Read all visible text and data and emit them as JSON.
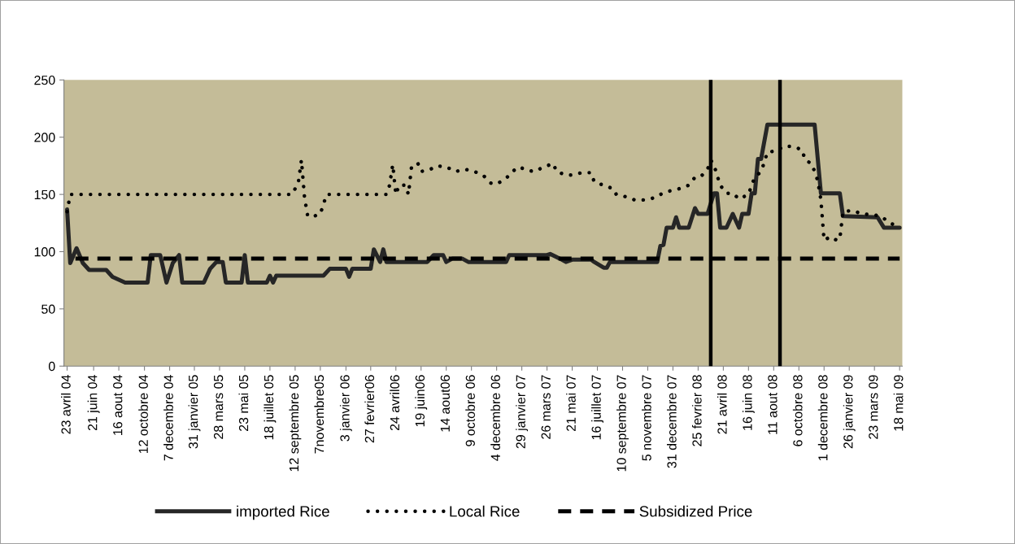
{
  "chart_data": {
    "type": "line",
    "xlim": [
      "2004-04-16",
      "2009-05-24"
    ],
    "ylim": [
      0,
      250
    ],
    "yticks": [
      0,
      50,
      100,
      150,
      200,
      250
    ],
    "xticks": [
      {
        "value": "2004-04-23",
        "label": "23 avril 04"
      },
      {
        "value": "2004-06-21",
        "label": "21 juin 04"
      },
      {
        "value": "2004-08-16",
        "label": "16 aout 04"
      },
      {
        "value": "2004-10-12",
        "label": "12 octobre 04"
      },
      {
        "value": "2004-12-07",
        "label": "7 decembre 04"
      },
      {
        "value": "2005-01-31",
        "label": "31 janvier 05"
      },
      {
        "value": "2005-03-28",
        "label": "28 mars 05"
      },
      {
        "value": "2005-05-23",
        "label": "23 mai 05"
      },
      {
        "value": "2005-07-18",
        "label": "18 juillet 05"
      },
      {
        "value": "2005-09-12",
        "label": "12 septembre 05"
      },
      {
        "value": "2005-11-07",
        "label": "7novembre05"
      },
      {
        "value": "2006-01-03",
        "label": "3 janvier 06"
      },
      {
        "value": "2006-02-27",
        "label": "27 fevrier06"
      },
      {
        "value": "2006-04-24",
        "label": "24 avril06"
      },
      {
        "value": "2006-06-19",
        "label": "19 juin06"
      },
      {
        "value": "2006-08-14",
        "label": "14 aout06"
      },
      {
        "value": "2006-10-09",
        "label": "9 octobre 06"
      },
      {
        "value": "2006-12-04",
        "label": "4 decembre 06"
      },
      {
        "value": "2007-01-29",
        "label": "29 janvier 07"
      },
      {
        "value": "2007-03-26",
        "label": "26 mars 07"
      },
      {
        "value": "2007-05-21",
        "label": "21 mai 07"
      },
      {
        "value": "2007-07-16",
        "label": "16 juillet 07"
      },
      {
        "value": "2007-09-10",
        "label": "10 septembre 07"
      },
      {
        "value": "2007-11-05",
        "label": "5 novembre 07"
      },
      {
        "value": "2007-12-31",
        "label": "31 decembre 07"
      },
      {
        "value": "2008-02-25",
        "label": "25 fevrier 08"
      },
      {
        "value": "2008-04-21",
        "label": "21 avril 08"
      },
      {
        "value": "2008-06-16",
        "label": "16 juin 08"
      },
      {
        "value": "2008-08-11",
        "label": "11 aout 08"
      },
      {
        "value": "2008-10-06",
        "label": "6 octobre 08"
      },
      {
        "value": "2008-12-01",
        "label": "1 decembre 08"
      },
      {
        "value": "2009-01-26",
        "label": "26 janvier 09"
      },
      {
        "value": "2009-03-23",
        "label": "23 mars 09"
      },
      {
        "value": "2009-05-18",
        "label": "18 mai 09"
      }
    ],
    "grid": false,
    "legend": "bottom",
    "marker": "none",
    "series": [
      {
        "name": "imported Rice",
        "color": "#262626",
        "line_style": "solid",
        "x": [
          "2004-04-23",
          "2004-04-30",
          "2004-05-14",
          "2004-05-28",
          "2004-06-11",
          "2004-07-19",
          "2004-08-02",
          "2004-08-30",
          "2004-10-19",
          "2004-10-26",
          "2004-11-16",
          "2004-11-30",
          "2004-12-14",
          "2004-12-28",
          "2005-01-04",
          "2005-02-21",
          "2005-03-07",
          "2005-03-21",
          "2005-04-04",
          "2005-04-11",
          "2005-05-16",
          "2005-05-23",
          "2005-05-30",
          "2005-07-11",
          "2005-07-18",
          "2005-07-25",
          "2005-08-01",
          "2005-11-14",
          "2005-11-28",
          "2006-01-03",
          "2006-01-10",
          "2006-01-17",
          "2006-02-27",
          "2006-03-06",
          "2006-03-20",
          "2006-03-27",
          "2006-04-03",
          "2006-07-03",
          "2006-07-17",
          "2006-08-07",
          "2006-08-14",
          "2006-08-28",
          "2006-09-18",
          "2006-10-02",
          "2006-12-25",
          "2007-01-01",
          "2007-03-26",
          "2007-04-02",
          "2007-04-23",
          "2007-05-07",
          "2007-05-21",
          "2007-07-02",
          "2007-07-09",
          "2007-07-30",
          "2007-08-06",
          "2007-08-13",
          "2007-11-26",
          "2007-12-03",
          "2007-12-10",
          "2007-12-17",
          "2007-12-31",
          "2008-01-07",
          "2008-01-14",
          "2008-02-04",
          "2008-02-18",
          "2008-02-25",
          "2008-03-17",
          "2008-03-31",
          "2008-04-07",
          "2008-04-14",
          "2008-04-28",
          "2008-05-12",
          "2008-05-26",
          "2008-06-02",
          "2008-06-16",
          "2008-06-23",
          "2008-06-30",
          "2008-07-07",
          "2008-07-14",
          "2008-07-28",
          "2008-11-10",
          "2008-11-24",
          "2009-01-05",
          "2009-01-12",
          "2009-03-30",
          "2009-04-13",
          "2009-05-18"
        ],
        "values": [
          137,
          90,
          103,
          90,
          84,
          84,
          78,
          73,
          73,
          97,
          97,
          73,
          90,
          97,
          73,
          73,
          85,
          91,
          91,
          73,
          73,
          97,
          73,
          73,
          79,
          73,
          79,
          79,
          85,
          85,
          78,
          85,
          85,
          102,
          91,
          102,
          91,
          91,
          97,
          97,
          91,
          94,
          94,
          91,
          91,
          97,
          97,
          98,
          94,
          91,
          93,
          93,
          91,
          86,
          86,
          91,
          91,
          105,
          106,
          121,
          121,
          130,
          121,
          121,
          138,
          133,
          133,
          151,
          151,
          121,
          121,
          133,
          121,
          133,
          133,
          151,
          151,
          181,
          181,
          211,
          211,
          151,
          151,
          131,
          130,
          121,
          121
        ]
      },
      {
        "name": "Local Rice",
        "color": "#000000",
        "line_style": "dotted",
        "x": [
          "2004-04-23",
          "2004-04-30",
          "2005-09-05",
          "2005-09-19",
          "2005-09-26",
          "2005-10-03",
          "2005-10-10",
          "2005-10-24",
          "2005-11-07",
          "2005-11-21",
          "2006-04-03",
          "2006-04-10",
          "2006-04-17",
          "2006-04-24",
          "2006-05-01",
          "2006-05-15",
          "2006-05-22",
          "2006-05-29",
          "2006-06-12",
          "2006-06-19",
          "2006-07-10",
          "2006-07-24",
          "2006-08-14",
          "2006-09-04",
          "2006-09-25",
          "2006-10-16",
          "2006-11-06",
          "2006-11-20",
          "2006-12-04",
          "2006-12-25",
          "2007-01-08",
          "2007-01-22",
          "2007-02-12",
          "2007-02-26",
          "2007-03-19",
          "2007-04-09",
          "2007-04-16",
          "2007-05-07",
          "2007-05-21",
          "2007-06-11",
          "2007-07-02",
          "2007-07-09",
          "2007-07-30",
          "2007-08-20",
          "2007-08-27",
          "2007-09-17",
          "2007-10-08",
          "2007-10-22",
          "2007-11-12",
          "2007-12-03",
          "2007-12-24",
          "2008-01-14",
          "2008-02-04",
          "2008-02-18",
          "2008-03-03",
          "2008-03-17",
          "2008-03-24",
          "2008-03-31",
          "2008-04-07",
          "2008-04-14",
          "2008-04-28",
          "2008-05-12",
          "2008-05-26",
          "2008-06-16",
          "2008-06-23",
          "2008-06-30",
          "2008-07-14",
          "2008-07-21",
          "2008-07-28",
          "2008-08-18",
          "2008-09-01",
          "2008-09-22",
          "2008-10-13",
          "2008-10-20",
          "2008-11-03",
          "2008-11-10",
          "2008-11-17",
          "2008-11-24",
          "2008-12-01",
          "2008-12-15",
          "2008-12-29",
          "2009-01-05",
          "2009-01-12",
          "2009-02-02",
          "2009-02-23",
          "2009-03-23",
          "2009-04-06",
          "2009-04-27",
          "2009-05-18"
        ],
        "values": [
          135,
          150,
          150,
          160,
          180,
          147,
          131,
          131,
          133,
          150,
          150,
          158,
          176,
          150,
          158,
          158,
          150,
          175,
          177,
          170,
          172,
          175,
          174,
          170,
          172,
          170,
          166,
          160,
          159,
          164,
          170,
          174,
          171,
          170,
          174,
          177,
          170,
          167,
          167,
          169,
          169,
          161,
          158,
          155,
          150,
          148,
          145,
          145,
          146,
          150,
          153,
          155,
          158,
          165,
          166,
          172,
          180,
          176,
          167,
          158,
          151,
          151,
          146,
          150,
          158,
          165,
          170,
          178,
          187,
          188,
          192,
          192,
          189,
          180,
          177,
          170,
          162,
          145,
          110,
          113,
          110,
          111,
          135,
          136,
          133,
          132,
          131,
          125,
          121
        ]
      },
      {
        "name": "Subsidized Price",
        "color": "#000000",
        "line_style": "dashed",
        "x": [
          "2004-04-23",
          "2009-05-18"
        ],
        "values": [
          94,
          94
        ]
      }
    ],
    "ref_lines": [
      {
        "axis": "x",
        "value": "2008-03-24",
        "color": "#000000",
        "line_style": "solid"
      },
      {
        "axis": "x",
        "value": "2008-08-25",
        "color": "#000000",
        "line_style": "solid"
      }
    ]
  }
}
